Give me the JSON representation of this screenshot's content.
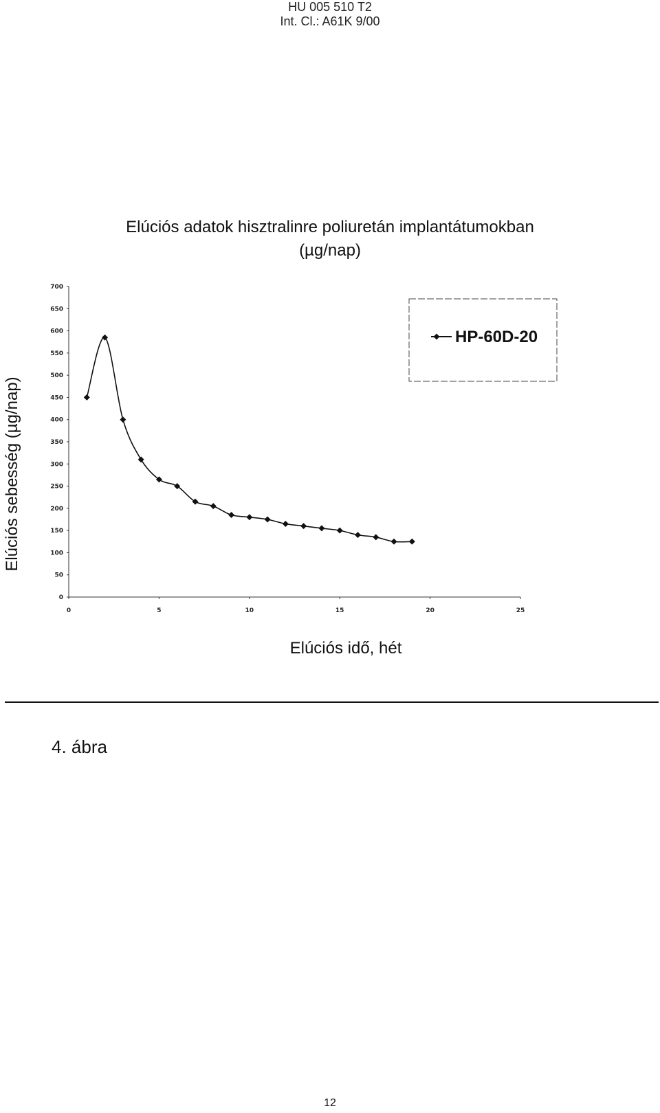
{
  "header": {
    "doc_number": "HU 005 510 T2",
    "classification": "Int. Cl.: A61K 9/00"
  },
  "figure_label": "4. ábra",
  "page_number": "12",
  "chart_data": {
    "type": "line",
    "title": "Elúciós adatok hisztralinre poliuretán implantátumokban",
    "subtitle": "(µg/nap)",
    "xlabel": "Elúciós idő, hét",
    "ylabel": "Elúciós sebesség (µg/nap)",
    "xlim": [
      0,
      25
    ],
    "ylim": [
      0,
      700
    ],
    "x_ticks": [
      0,
      5,
      10,
      15,
      20,
      25
    ],
    "y_ticks": [
      0,
      50,
      100,
      150,
      200,
      250,
      300,
      350,
      400,
      450,
      500,
      550,
      600,
      650,
      700
    ],
    "y_tick_labels": [
      "0",
      "50",
      "100",
      "150",
      "200",
      "250",
      "300",
      "350",
      "400",
      "450",
      "500",
      "550",
      "600",
      "650",
      "700"
    ],
    "x_tick_labels": [
      "0",
      "5",
      "10",
      "15",
      "20",
      "25"
    ],
    "grid": false,
    "legend_position": "top-right",
    "series": [
      {
        "name": "HP-60D-20",
        "color": "#111111",
        "marker": "diamond",
        "x": [
          1,
          2,
          3,
          4,
          5,
          6,
          7,
          8,
          9,
          10,
          11,
          12,
          13,
          14,
          15,
          16,
          17,
          18,
          19
        ],
        "y": [
          450,
          585,
          400,
          310,
          265,
          250,
          215,
          205,
          185,
          180,
          175,
          165,
          160,
          155,
          150,
          140,
          135,
          125,
          125
        ]
      }
    ]
  }
}
